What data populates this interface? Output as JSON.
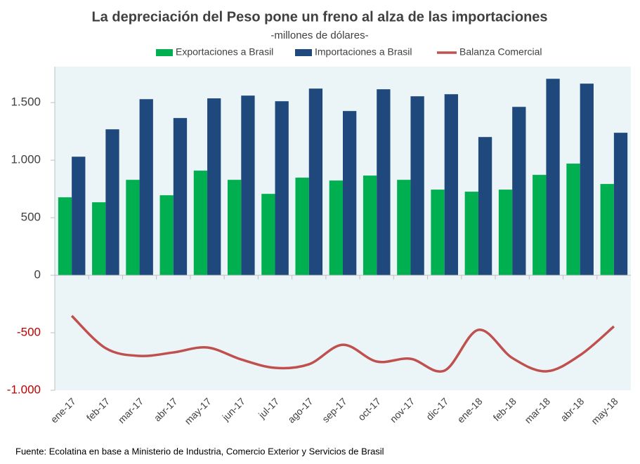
{
  "chart_data": {
    "type": "bar_line",
    "title": "La depreciación del Peso pone un freno al alza de las importaciones",
    "subtitle": "-millones de dólares-",
    "source": "Fuente: Ecolatina en base a Ministerio de Industria, Comercio Exterior y Servicios de Brasil",
    "categories": [
      "ene-17",
      "feb-17",
      "mar-17",
      "abr-17",
      "may-17",
      "jun-17",
      "jul-17",
      "ago-17",
      "sep-17",
      "oct-17",
      "nov-17",
      "dic-17",
      "ene-18",
      "feb-18",
      "mar-18",
      "abr-18",
      "may-18"
    ],
    "series": [
      {
        "name": "Exportaciones a Brasil",
        "color": "#00b050",
        "kind": "bar",
        "values": [
          677,
          634,
          829,
          695,
          909,
          829,
          707,
          848,
          823,
          866,
          829,
          744,
          726,
          744,
          872,
          970,
          793
        ]
      },
      {
        "name": "Importaciones a Brasil",
        "color": "#1f497d",
        "kind": "bar",
        "values": [
          1030,
          1268,
          1530,
          1366,
          1537,
          1561,
          1512,
          1622,
          1427,
          1616,
          1555,
          1573,
          1201,
          1463,
          1707,
          1665,
          1238
        ]
      },
      {
        "name": "Balanza Comercial",
        "color": "#c0504d",
        "kind": "line",
        "values": [
          -353,
          -634,
          -701,
          -671,
          -628,
          -732,
          -805,
          -774,
          -604,
          -750,
          -726,
          -829,
          -475,
          -719,
          -835,
          -695,
          -445
        ]
      }
    ],
    "ylim": [
      -1000,
      1800
    ],
    "yticks": [
      {
        "value": -1000,
        "label": "-1.000"
      },
      -500,
      0,
      500,
      {
        "value": 1000,
        "label": "1.000"
      },
      {
        "value": 1500,
        "label": "1.500"
      }
    ],
    "negative_tick_color": "#c00000",
    "plot_background": "#ebf5f8",
    "legend": "top"
  }
}
